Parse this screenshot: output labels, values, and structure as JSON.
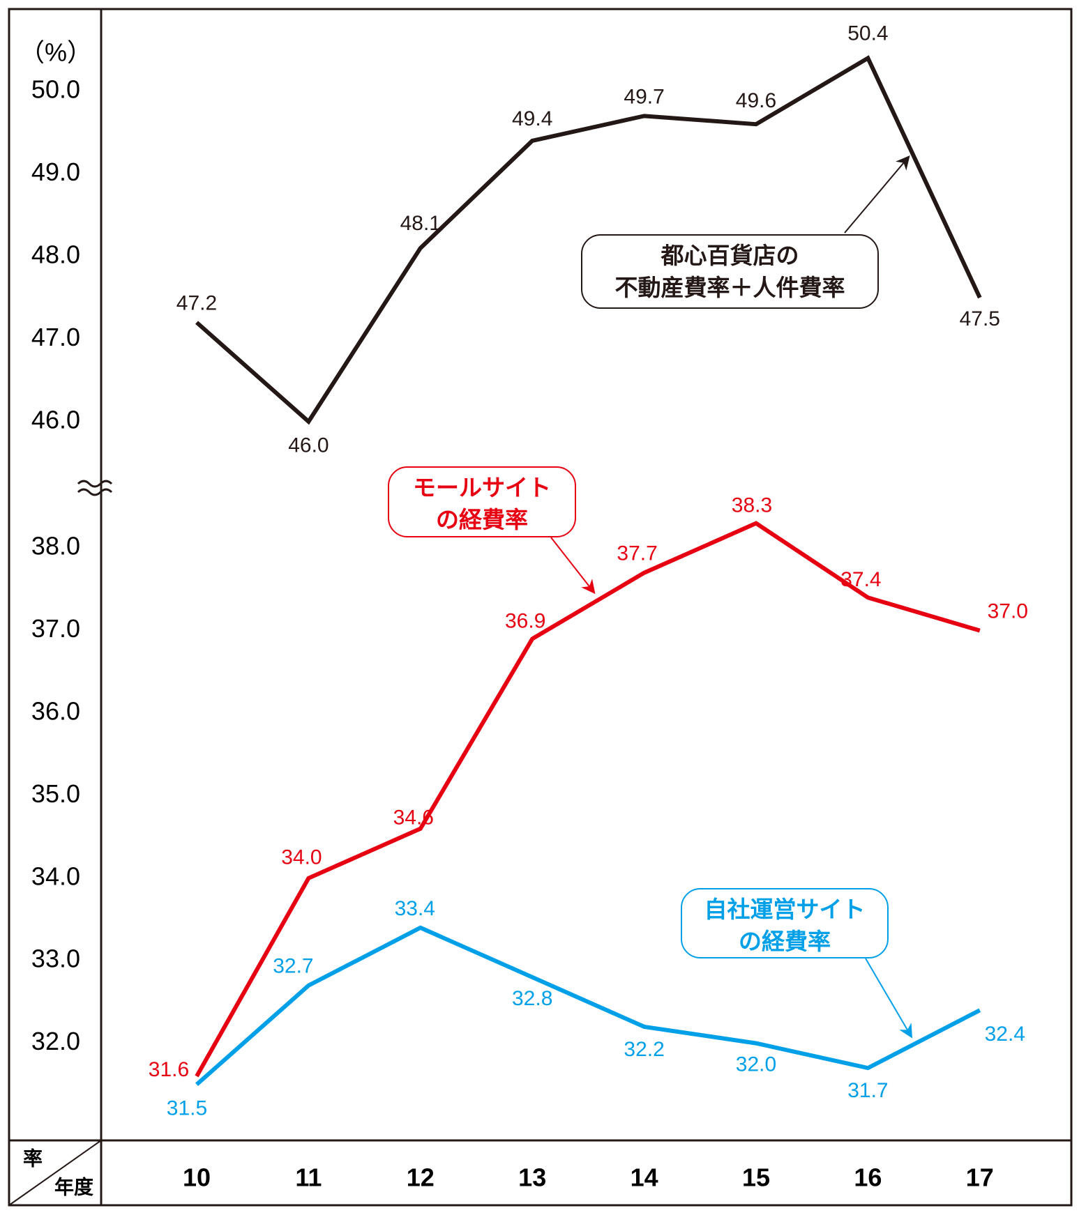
{
  "chart_data": [
    {
      "type": "line",
      "y_label": "（%）",
      "y_header": "率",
      "x_header": "年度",
      "categories": [
        "10",
        "11",
        "12",
        "13",
        "14",
        "15",
        "16",
        "17"
      ],
      "ylim": [
        45.5,
        50.8
      ],
      "yticks": [
        {
          "value": 46,
          "label": "46.0"
        },
        {
          "value": 47,
          "label": "47.0"
        },
        {
          "value": 48,
          "label": "48.0"
        },
        {
          "value": 49,
          "label": "49.0"
        },
        {
          "value": 50,
          "label": "50.0"
        }
      ],
      "grid": false,
      "series": [
        {
          "name": "都心百貨店の\n不動産費率＋人件費率",
          "color": "#231815",
          "values": [
            47.2,
            46.0,
            48.1,
            49.4,
            49.7,
            49.6,
            50.4,
            47.5
          ],
          "value_labels": [
            "47.2",
            "46.0",
            "48.1",
            "49.4",
            "49.7",
            "49.6",
            "50.4",
            "47.5"
          ]
        }
      ]
    },
    {
      "type": "line",
      "ylim": [
        31.0,
        38.5
      ],
      "yticks": [
        {
          "value": 32,
          "label": "32.0"
        },
        {
          "value": 33,
          "label": "33.0"
        },
        {
          "value": 34,
          "label": "34.0"
        },
        {
          "value": 35,
          "label": "35.0"
        },
        {
          "value": 36,
          "label": "36.0"
        },
        {
          "value": 37,
          "label": "37.0"
        },
        {
          "value": 38,
          "label": "38.0"
        }
      ],
      "grid": false,
      "series": [
        {
          "name": "モールサイト\nの経費率",
          "color": "#e60012",
          "values": [
            31.6,
            34.0,
            34.6,
            36.9,
            37.7,
            38.3,
            37.4,
            37.0
          ],
          "value_labels": [
            "31.6",
            "34.0",
            "34.6",
            "36.9",
            "37.7",
            "38.3",
            "37.4",
            "37.0"
          ]
        },
        {
          "name": "自社運営サイト\nの経費率",
          "color": "#00a0e9",
          "values": [
            31.5,
            32.7,
            33.4,
            32.8,
            32.2,
            32.0,
            31.7,
            32.4
          ],
          "value_labels": [
            "31.5",
            "32.7",
            "33.4",
            "32.8",
            "32.2",
            "32.0",
            "31.7",
            "32.4"
          ]
        }
      ]
    }
  ]
}
